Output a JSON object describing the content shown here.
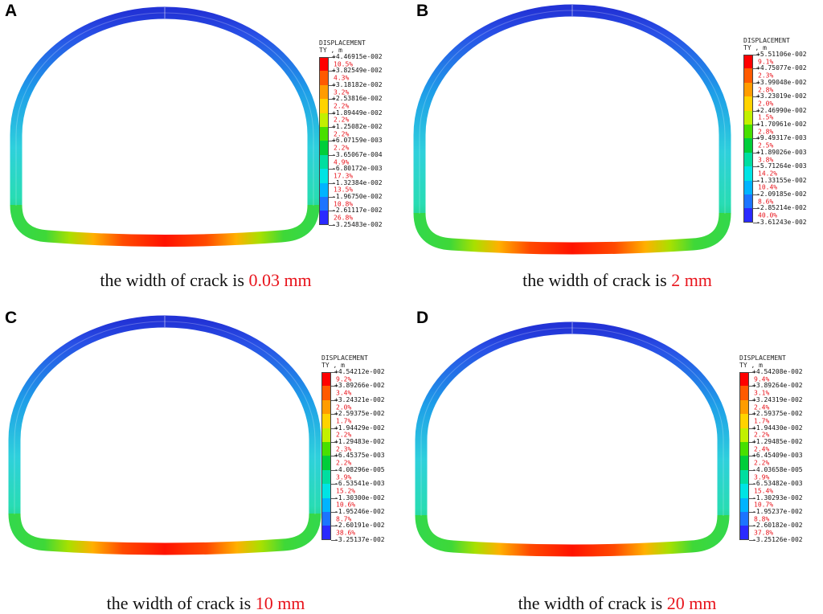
{
  "legend_colors": [
    "#ff0000",
    "#ff5a00",
    "#ff9c00",
    "#ffd300",
    "#c2f000",
    "#48e000",
    "#00ce3a",
    "#00dea0",
    "#00e4e4",
    "#00b4ff",
    "#1c74ff",
    "#2a2aff"
  ],
  "panels": [
    {
      "letter": "A",
      "legend": {
        "title": "DISPLACEMENT",
        "subtitle": "TY , m",
        "values": [
          "+4.46915e-002",
          "+3.82549e-002",
          "+3.18182e-002",
          "+2.53816e-002",
          "+1.89449e-002",
          "+1.25082e-002",
          "+6.07159e-003",
          "-3.65067e-004",
          "-6.80172e-003",
          "-1.32384e-002",
          "-1.96750e-002",
          "-2.61117e-002",
          "-3.25483e-002"
        ],
        "percents": [
          "10.5%",
          "4.3%",
          "3.2%",
          "2.2%",
          "2.2%",
          "2.2%",
          "2.2%",
          "4.9%",
          "17.3%",
          "13.5%",
          "10.8%",
          "26.8%"
        ]
      },
      "caption": {
        "prefix": "the width of crack is ",
        "value": "0.03 mm"
      }
    },
    {
      "letter": "B",
      "legend": {
        "title": "DISPLACEMENT",
        "subtitle": "TY , m",
        "values": [
          "+5.51106e-002",
          "+4.75077e-002",
          "+3.99048e-002",
          "+3.23019e-002",
          "+2.46990e-002",
          "+1.70961e-002",
          "+9.49317e-003",
          "+1.89026e-003",
          "-5.71264e-003",
          "-1.33155e-002",
          "-2.09185e-002",
          "-2.85214e-002",
          "-3.61243e-002"
        ],
        "percents": [
          "9.1%",
          "2.3%",
          "2.8%",
          "2.0%",
          "1.5%",
          "2.8%",
          "2.5%",
          "3.8%",
          "14.2%",
          "10.4%",
          "8.6%",
          "40.0%"
        ]
      },
      "caption": {
        "prefix": "the width of crack is ",
        "value": "2 mm"
      }
    },
    {
      "letter": "C",
      "legend": {
        "title": "DISPLACEMENT",
        "subtitle": "TY , m",
        "values": [
          "+4.54212e-002",
          "+3.89266e-002",
          "+3.24321e-002",
          "+2.59375e-002",
          "+1.94429e-002",
          "+1.29483e-002",
          "+6.45375e-003",
          "-4.08296e-005",
          "-6.53541e-003",
          "-1.30300e-002",
          "-1.95246e-002",
          "-2.60191e-002",
          "-3.25137e-002"
        ],
        "percents": [
          "9.2%",
          "3.4%",
          "2.0%",
          "1.7%",
          "2.2%",
          "2.3%",
          "2.2%",
          "3.9%",
          "15.2%",
          "10.6%",
          "8.7%",
          "38.6%"
        ]
      },
      "caption": {
        "prefix": "the width of crack is ",
        "value": "10 mm"
      }
    },
    {
      "letter": "D",
      "legend": {
        "title": "DISPLACEMENT",
        "subtitle": "TY , m",
        "values": [
          "+4.54208e-002",
          "+3.89264e-002",
          "+3.24319e-002",
          "+2.59375e-002",
          "+1.94430e-002",
          "+1.29485e-002",
          "+6.45409e-003",
          "-4.03658e-005",
          "-6.53482e-003",
          "-1.30293e-002",
          "-1.95237e-002",
          "-2.60182e-002",
          "-3.25126e-002"
        ],
        "percents": [
          "9.4%",
          "3.1%",
          "2.4%",
          "1.7%",
          "2.2%",
          "2.4%",
          "2.2%",
          "3.9%",
          "15.4%",
          "10.7%",
          "8.8%",
          "37.8%"
        ]
      },
      "caption": {
        "prefix": "the width of crack is ",
        "value": "20 mm"
      }
    }
  ]
}
